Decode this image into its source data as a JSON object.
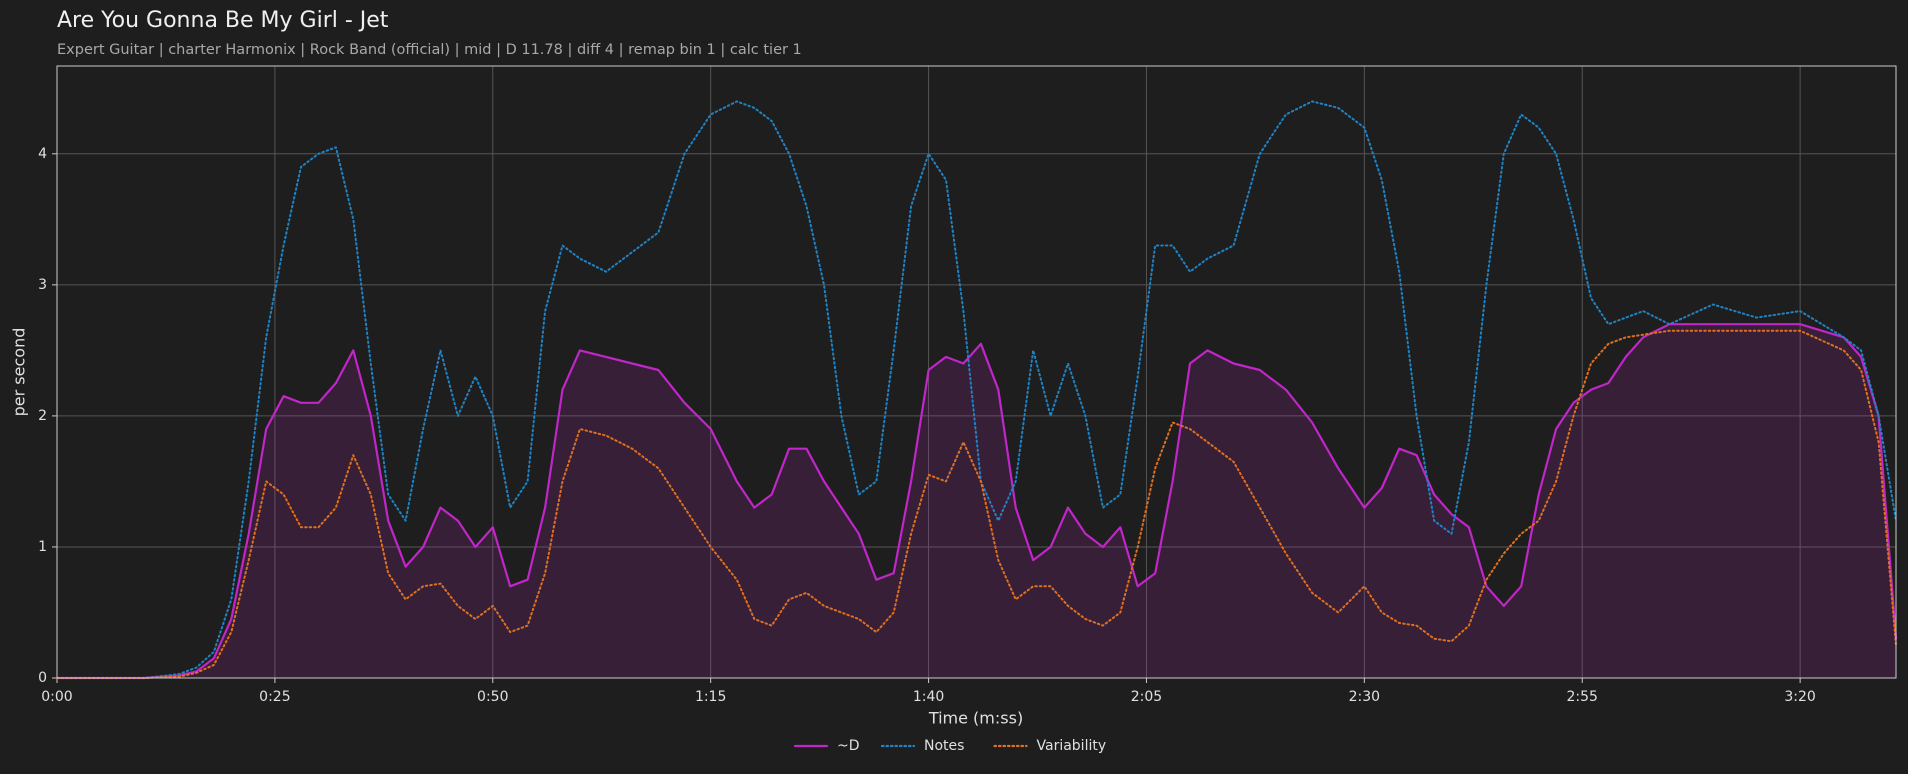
{
  "chart_data": {
    "type": "line",
    "title": "Are You Gonna Be My Girl - Jet",
    "subtitle": "Expert Guitar  |  charter Harmonix  |  Rock Band (official)  |  mid  |  D 11.78  |  diff 4  |  remap bin 1  |  calc tier 1",
    "xlabel": "Time (m:ss)",
    "ylabel": "per second",
    "x": [
      0,
      10,
      14,
      16,
      18,
      20,
      22,
      24,
      26,
      28,
      30,
      32,
      34,
      36,
      38,
      40,
      42,
      44,
      46,
      48,
      50,
      52,
      54,
      56,
      58,
      60,
      63,
      66,
      69,
      72,
      75,
      78,
      80,
      82,
      84,
      86,
      88,
      90,
      92,
      94,
      96,
      98,
      100,
      102,
      104,
      106,
      108,
      110,
      112,
      114,
      116,
      118,
      120,
      122,
      124,
      126,
      128,
      130,
      132,
      135,
      138,
      141,
      144,
      147,
      150,
      152,
      154,
      156,
      158,
      160,
      162,
      164,
      166,
      168,
      170,
      172,
      174,
      176,
      178,
      180,
      182,
      185,
      190,
      195,
      200,
      205,
      207,
      209,
      211
    ],
    "series": [
      {
        "name": "~D",
        "color": "#c026c8",
        "linestyle": "solid",
        "fill": true,
        "values": [
          0,
          0,
          0.02,
          0.05,
          0.15,
          0.45,
          1.1,
          1.9,
          2.15,
          2.1,
          2.1,
          2.25,
          2.5,
          2.0,
          1.2,
          0.85,
          1.0,
          1.3,
          1.2,
          1.0,
          1.15,
          0.7,
          0.75,
          1.3,
          2.2,
          2.5,
          2.45,
          2.4,
          2.35,
          2.1,
          1.9,
          1.5,
          1.3,
          1.4,
          1.75,
          1.75,
          1.5,
          1.3,
          1.1,
          0.75,
          0.8,
          1.5,
          2.35,
          2.45,
          2.4,
          2.55,
          2.2,
          1.3,
          0.9,
          1.0,
          1.3,
          1.1,
          1.0,
          1.15,
          0.7,
          0.8,
          1.5,
          2.4,
          2.5,
          2.4,
          2.35,
          2.2,
          1.95,
          1.6,
          1.3,
          1.45,
          1.75,
          1.7,
          1.4,
          1.25,
          1.15,
          0.7,
          0.55,
          0.7,
          1.4,
          1.9,
          2.1,
          2.2,
          2.25,
          2.45,
          2.6,
          2.7,
          2.7,
          2.7,
          2.7,
          2.6,
          2.45,
          2.0,
          0.3
        ]
      },
      {
        "name": "Notes",
        "color": "#1f83c4",
        "linestyle": "dotted",
        "fill": false,
        "values": [
          0,
          0,
          0.03,
          0.08,
          0.2,
          0.6,
          1.5,
          2.6,
          3.3,
          3.9,
          4.0,
          4.05,
          3.5,
          2.4,
          1.4,
          1.2,
          1.9,
          2.5,
          2.0,
          2.3,
          2.0,
          1.3,
          1.5,
          2.8,
          3.3,
          3.2,
          3.1,
          3.25,
          3.4,
          4.0,
          4.3,
          4.4,
          4.35,
          4.25,
          4.0,
          3.6,
          3.0,
          2.0,
          1.4,
          1.5,
          2.5,
          3.6,
          4.0,
          3.8,
          2.8,
          1.5,
          1.2,
          1.5,
          2.5,
          2.0,
          2.4,
          2.0,
          1.3,
          1.4,
          2.3,
          3.3,
          3.3,
          3.1,
          3.2,
          3.3,
          4.0,
          4.3,
          4.4,
          4.35,
          4.2,
          3.8,
          3.1,
          2.0,
          1.2,
          1.1,
          1.8,
          3.0,
          4.0,
          4.3,
          4.2,
          4.0,
          3.5,
          2.9,
          2.7,
          2.75,
          2.8,
          2.7,
          2.85,
          2.75,
          2.8,
          2.6,
          2.5,
          2.0,
          1.2
        ]
      },
      {
        "name": "Variability",
        "color": "#e07020",
        "linestyle": "dotted",
        "fill": false,
        "values": [
          0,
          0,
          0.01,
          0.04,
          0.1,
          0.35,
          0.9,
          1.5,
          1.4,
          1.15,
          1.15,
          1.3,
          1.7,
          1.4,
          0.8,
          0.6,
          0.7,
          0.72,
          0.55,
          0.45,
          0.55,
          0.35,
          0.4,
          0.8,
          1.5,
          1.9,
          1.85,
          1.75,
          1.6,
          1.3,
          1.0,
          0.75,
          0.45,
          0.4,
          0.6,
          0.65,
          0.55,
          0.5,
          0.45,
          0.35,
          0.5,
          1.1,
          1.55,
          1.5,
          1.8,
          1.5,
          0.9,
          0.6,
          0.7,
          0.7,
          0.55,
          0.45,
          0.4,
          0.5,
          1.0,
          1.6,
          1.95,
          1.9,
          1.8,
          1.65,
          1.3,
          0.95,
          0.65,
          0.5,
          0.7,
          0.5,
          0.42,
          0.4,
          0.3,
          0.28,
          0.4,
          0.75,
          0.95,
          1.1,
          1.2,
          1.5,
          2.0,
          2.4,
          2.55,
          2.6,
          2.62,
          2.65,
          2.65,
          2.65,
          2.65,
          2.5,
          2.35,
          1.8,
          0.25
        ]
      }
    ],
    "xlim": [
      0,
      211
    ],
    "ylim": [
      0,
      4.67
    ],
    "xticks": [
      {
        "value": 0,
        "label": "0:00"
      },
      {
        "value": 25,
        "label": "0:25"
      },
      {
        "value": 50,
        "label": "0:50"
      },
      {
        "value": 75,
        "label": "1:15"
      },
      {
        "value": 100,
        "label": "1:40"
      },
      {
        "value": 125,
        "label": "2:05"
      },
      {
        "value": 150,
        "label": "2:30"
      },
      {
        "value": 175,
        "label": "2:55"
      },
      {
        "value": 200,
        "label": "3:20"
      }
    ],
    "yticks": [
      0,
      1,
      2,
      3,
      4
    ],
    "grid": true,
    "legend": "lower center"
  }
}
